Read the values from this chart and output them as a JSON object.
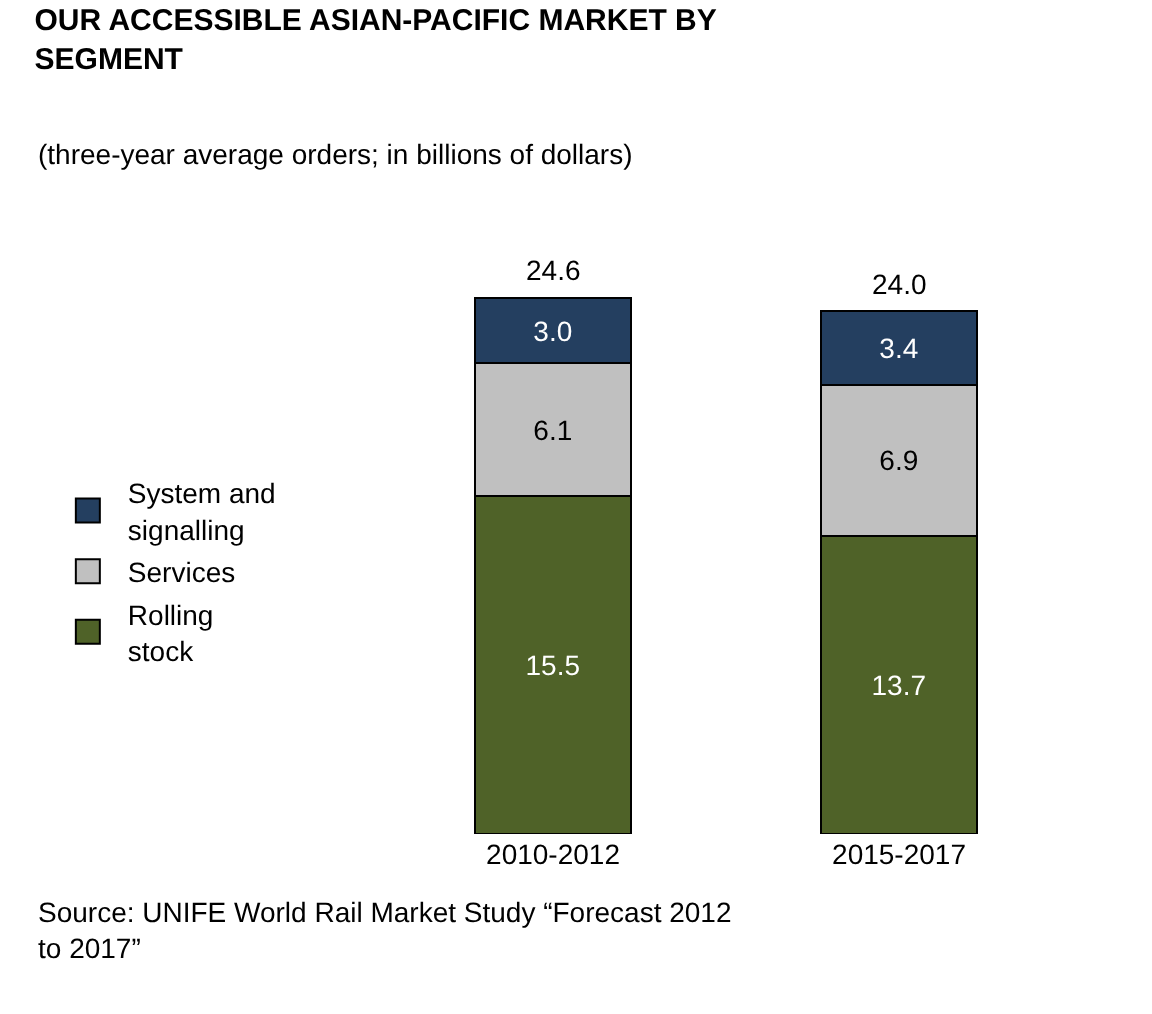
{
  "chart_data": {
    "type": "bar",
    "title": "OUR ACCESSIBLE ASIAN-PACIFIC MARKET BY SEGMENT",
    "subtitle": "(three-year average orders; in billions of dollars)",
    "categories": [
      "2010-2012",
      "2015-2017"
    ],
    "stacked": true,
    "series": [
      {
        "name": "Rolling stock",
        "color": "#4f6228",
        "values": [
          15.5,
          13.7
        ],
        "value_labels": [
          "15.5",
          "13.7"
        ]
      },
      {
        "name": "Services",
        "color": "#c0c0c0",
        "values": [
          6.1,
          6.9
        ],
        "value_labels": [
          "6.1",
          "6.9"
        ]
      },
      {
        "name": "System and signalling",
        "color": "#243f60",
        "values": [
          3.0,
          3.4
        ],
        "value_labels": [
          "3.0",
          "3.4"
        ]
      }
    ],
    "totals": [
      "24.6",
      "24.0"
    ],
    "legend": "left",
    "grid": false,
    "annotations": [
      "Source: UNIFE World Rail Market Study “Forecast 2012 to 2017”"
    ]
  }
}
